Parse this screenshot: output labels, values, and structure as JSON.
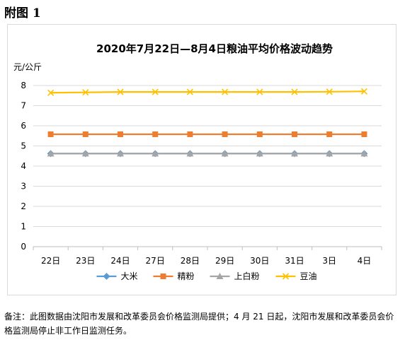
{
  "heading": "附图 1",
  "note": "备注：此图数据由沈阳市发展和改革委员会价格监测局提供；4 月 21 日起，沈阳市发展和改革委员会价格监测局停止非工作日监测任务。",
  "chart_data": {
    "type": "line",
    "title": "2020年7月22日—8月4日粮油平均价格波动趋势",
    "ylabel": "元/公斤",
    "xlabel": "",
    "ylim": [
      0,
      8
    ],
    "yticks": [
      "0",
      "1",
      "2",
      "3",
      "4",
      "5",
      "6",
      "7",
      "8"
    ],
    "grid": true,
    "legend": "bottom",
    "categories": [
      "22日",
      "23日",
      "24日",
      "27日",
      "28日",
      "29日",
      "30日",
      "31日",
      "3日",
      "4日"
    ],
    "series": [
      {
        "name": "大米",
        "color": "#5b9bd5",
        "marker": "diamond",
        "values": [
          4.62,
          4.62,
          4.62,
          4.62,
          4.62,
          4.62,
          4.62,
          4.62,
          4.62,
          4.62
        ]
      },
      {
        "name": "精粉",
        "color": "#ed7d31",
        "marker": "square",
        "values": [
          5.58,
          5.58,
          5.58,
          5.58,
          5.58,
          5.58,
          5.58,
          5.58,
          5.58,
          5.58
        ]
      },
      {
        "name": "上白粉",
        "color": "#a5a5a5",
        "marker": "triangle",
        "values": [
          4.62,
          4.62,
          4.62,
          4.62,
          4.62,
          4.62,
          4.62,
          4.62,
          4.62,
          4.62
        ]
      },
      {
        "name": "豆油",
        "color": "#ffc000",
        "marker": "x",
        "values": [
          7.64,
          7.66,
          7.68,
          7.68,
          7.68,
          7.68,
          7.68,
          7.68,
          7.69,
          7.71
        ]
      }
    ]
  }
}
